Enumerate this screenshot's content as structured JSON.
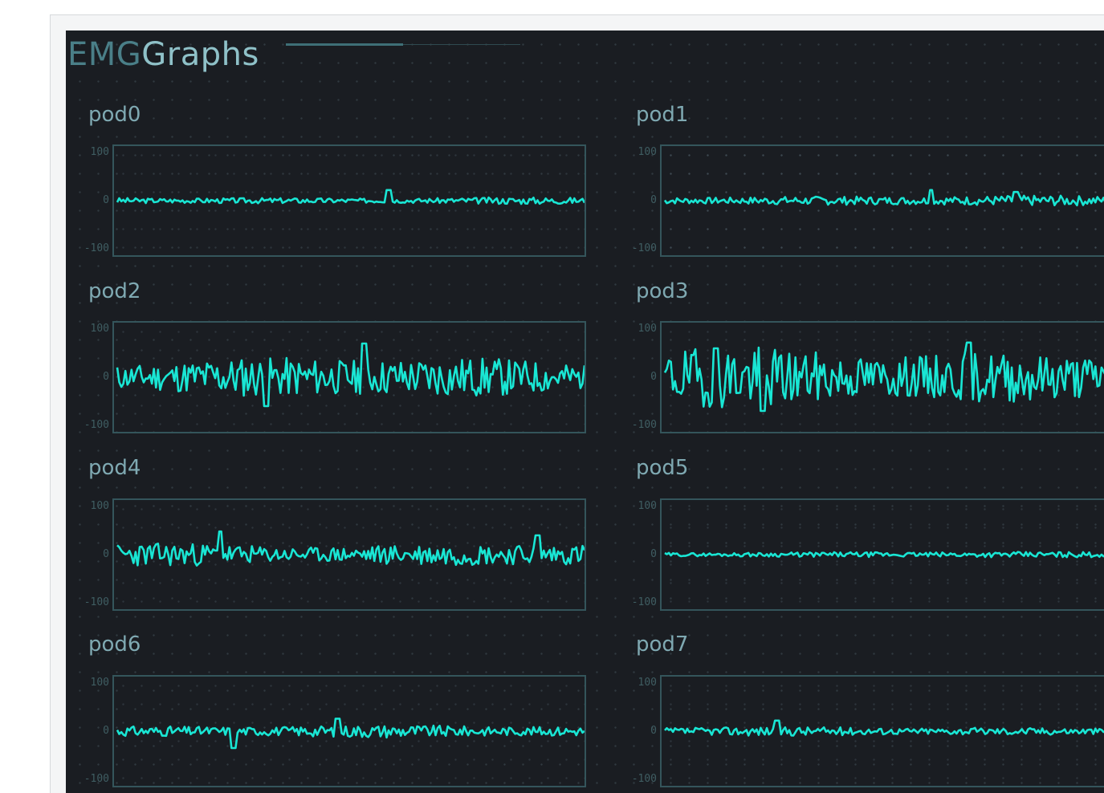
{
  "window": {
    "title_part1": "EMG",
    "title_part2": "Graphs"
  },
  "colors": {
    "background": "#1a1d22",
    "signal": "#19e6d4",
    "frame": "#34555b",
    "label": "#7fa9b2"
  },
  "chart_data": [
    {
      "type": "line",
      "title": "pod0",
      "ylim": [
        -100,
        100
      ],
      "yticks": [
        "100",
        "0",
        "-100"
      ],
      "amplitude": 6,
      "spikes": [
        {
          "x": 0.58,
          "y": 22
        }
      ],
      "seed": 3
    },
    {
      "type": "line",
      "title": "pod1",
      "ylim": [
        -100,
        100
      ],
      "yticks": [
        "100",
        "0",
        "-100"
      ],
      "amplitude": 9,
      "spikes": [
        {
          "x": 0.57,
          "y": 22
        },
        {
          "x": 0.75,
          "y": 18
        }
      ],
      "seed": 7
    },
    {
      "type": "line",
      "title": "pod2",
      "ylim": [
        -100,
        100
      ],
      "yticks": [
        "100",
        "0",
        "-100"
      ],
      "amplitude": 38,
      "spikes": [
        {
          "x": 0.53,
          "y": 70
        },
        {
          "x": 0.32,
          "y": -60
        }
      ],
      "seed": 11
    },
    {
      "type": "line",
      "title": "pod3",
      "ylim": [
        -100,
        100
      ],
      "yticks": [
        "100",
        "0",
        "-100"
      ],
      "amplitude": 55,
      "spikes": [
        {
          "x": 0.11,
          "y": 60
        },
        {
          "x": 0.21,
          "y": -70
        },
        {
          "x": 0.65,
          "y": 72
        }
      ],
      "seed": 19
    },
    {
      "type": "line",
      "title": "pod4",
      "ylim": [
        -100,
        100
      ],
      "yticks": [
        "100",
        "0",
        "-100"
      ],
      "amplitude": 22,
      "spikes": [
        {
          "x": 0.22,
          "y": 48
        },
        {
          "x": 0.9,
          "y": 40
        }
      ],
      "seed": 23
    },
    {
      "type": "line",
      "title": "pod5",
      "ylim": [
        -100,
        100
      ],
      "yticks": [
        "100",
        "0",
        "-100"
      ],
      "amplitude": 5,
      "spikes": [],
      "seed": 29
    },
    {
      "type": "line",
      "title": "pod6",
      "ylim": [
        -100,
        100
      ],
      "yticks": [
        "100",
        "0",
        "-100"
      ],
      "amplitude": 11,
      "spikes": [
        {
          "x": 0.25,
          "y": -35
        },
        {
          "x": 0.47,
          "y": 26
        }
      ],
      "seed": 31
    },
    {
      "type": "line",
      "title": "pod7",
      "ylim": [
        -100,
        100
      ],
      "yticks": [
        "100",
        "0",
        "-100"
      ],
      "amplitude": 8,
      "spikes": [
        {
          "x": 0.24,
          "y": -28
        },
        {
          "x": 0.24,
          "y": 22
        }
      ],
      "seed": 37
    }
  ]
}
